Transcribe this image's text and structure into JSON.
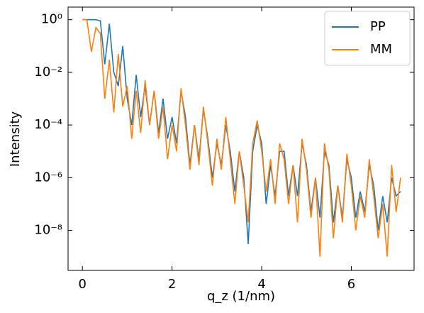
{
  "chart_data": {
    "type": "line",
    "xlabel": "q_z (1/nm)",
    "ylabel": "Intensity",
    "x": [
      0.0,
      0.1,
      0.2,
      0.3,
      0.4,
      0.5,
      0.6,
      0.7,
      0.8,
      0.9,
      1.0,
      1.1,
      1.2,
      1.3,
      1.4,
      1.5,
      1.6,
      1.7,
      1.8,
      1.9,
      2.0,
      2.1,
      2.2,
      2.3,
      2.4,
      2.5,
      2.6,
      2.7,
      2.8,
      2.9,
      3.0,
      3.1,
      3.2,
      3.3,
      3.4,
      3.5,
      3.6,
      3.7,
      3.8,
      3.9,
      4.0,
      4.1,
      4.2,
      4.3,
      4.4,
      4.5,
      4.6,
      4.7,
      4.8,
      4.9,
      5.0,
      5.1,
      5.2,
      5.3,
      5.4,
      5.5,
      5.6,
      5.7,
      5.8,
      5.9,
      6.0,
      6.1,
      6.2,
      6.3,
      6.4,
      6.5,
      6.6,
      6.7,
      6.8,
      6.9,
      7.0,
      7.1
    ],
    "series": [
      {
        "name": "PP",
        "color": "#1f77b4",
        "values": [
          1,
          1,
          1,
          1,
          0.9,
          0.02,
          0.7,
          0.01,
          0.003,
          0.1,
          0.001,
          0.0001,
          0.008,
          0.0002,
          0.003,
          0.0001,
          0.002,
          5e-05,
          0.001,
          3e-05,
          0.0002,
          2e-05,
          0.002,
          0.0002,
          3e-06,
          0.0001,
          5e-06,
          0.0004,
          3e-05,
          1e-06,
          2e-05,
          3e-06,
          0.0001,
          1e-05,
          3e-07,
          1e-05,
          1e-06,
          3e-09,
          1e-05,
          0.0001,
          2e-05,
          1e-07,
          3e-06,
          2e-07,
          1e-05,
          1e-05,
          2e-07,
          3e-06,
          2e-07,
          2e-05,
          3e-06,
          5e-08,
          1e-06,
          3e-08,
          1e-05,
          3e-06,
          2e-08,
          5e-07,
          3e-08,
          5e-06,
          1e-06,
          3e-08,
          3e-07,
          5e-08,
          3e-06,
          5e-07,
          1e-08,
          2e-07,
          2e-08,
          1e-06,
          2e-07,
          3e-07
        ]
      },
      {
        "name": "MM",
        "color": "#ff7f0e",
        "values": [
          1,
          1,
          0.06,
          0.5,
          0.3,
          0.001,
          0.03,
          0.0003,
          0.05,
          0.0005,
          0.003,
          3e-05,
          0.002,
          5e-05,
          0.005,
          0.0001,
          0.002,
          3e-05,
          0.0005,
          5e-06,
          0.0001,
          1e-05,
          0.0025,
          0.0001,
          2e-06,
          0.0001,
          3e-06,
          0.0005,
          2e-05,
          5e-07,
          3e-05,
          2e-06,
          0.0002,
          5e-06,
          1e-07,
          1e-05,
          5e-07,
          2e-08,
          2e-05,
          0.00015,
          1e-05,
          3e-07,
          5e-06,
          1e-07,
          2e-05,
          5e-06,
          1e-07,
          3e-06,
          2e-08,
          3e-05,
          2e-06,
          3e-08,
          1e-06,
          1e-09,
          2e-05,
          2e-06,
          5e-09,
          5e-07,
          2e-08,
          8e-06,
          5e-07,
          1e-08,
          2e-07,
          3e-08,
          5e-06,
          2e-07,
          5e-09,
          1e-07,
          1e-09,
          3e-06,
          5e-08,
          1e-06
        ]
      }
    ],
    "xlim": [
      -0.32,
      7.4
    ],
    "xticks": [
      0,
      2,
      4,
      6
    ],
    "ylim": [
      3e-10,
      3
    ],
    "log_y": true,
    "yticks": [
      {
        "value": 1,
        "label": "10⁰"
      },
      {
        "value": 0.01,
        "label": "10⁻²"
      },
      {
        "value": 0.0001,
        "label": "10⁻⁴"
      },
      {
        "value": 1e-06,
        "label": "10⁻⁶"
      },
      {
        "value": 1e-08,
        "label": "10⁻⁸"
      }
    ],
    "grid": false,
    "legend": "upper right"
  }
}
